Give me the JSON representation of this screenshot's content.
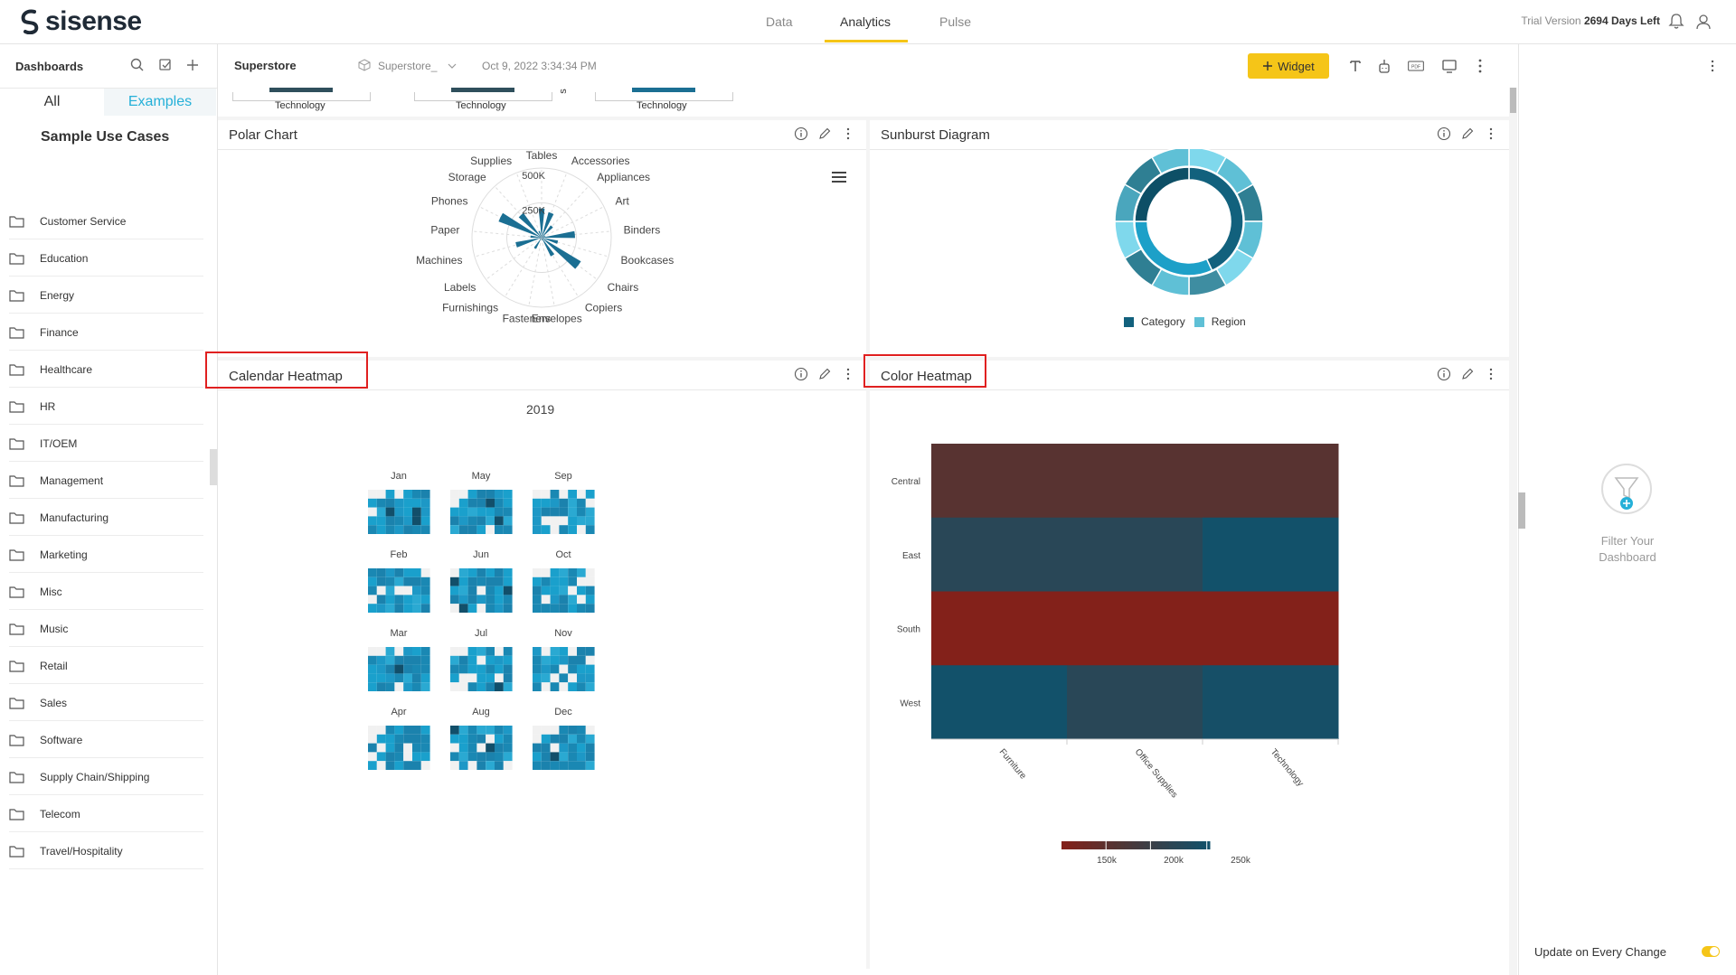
{
  "app": {
    "logo_text": "sisense",
    "nav_tabs": [
      "Data",
      "Analytics",
      "Pulse"
    ],
    "active_tab": "Analytics",
    "trial_label": "Trial Version",
    "trial_days": "2694 Days Left"
  },
  "sidebar": {
    "title": "Dashboards",
    "tabs": {
      "all": "All",
      "examples": "Examples"
    },
    "section_title": "Sample Use Cases",
    "folders": [
      "Customer Service",
      "Education",
      "Energy",
      "Finance",
      "Healthcare",
      "HR",
      "IT/OEM",
      "Management",
      "Manufacturing",
      "Marketing",
      "Misc",
      "Music",
      "Retail",
      "Sales",
      "Software",
      "Supply Chain/Shipping",
      "Telecom",
      "Travel/Hospitality"
    ]
  },
  "dashboard": {
    "name": "Superstore",
    "datasource": "Superstore_",
    "date": "Oct 9, 2022 3:34:34 PM",
    "widget_button": "Widget",
    "partial_labels": [
      "Technology",
      "Technology",
      "Technology"
    ],
    "partial_stub": "s"
  },
  "widgets": {
    "polar": {
      "title": "Polar Chart",
      "categories": [
        "Tables",
        "Accessories",
        "Appliances",
        "Art",
        "Binders",
        "Bookcases",
        "Chairs",
        "Copiers",
        "Envelopes",
        "Fasteners",
        "Furnishings",
        "Labels",
        "Machines",
        "Paper",
        "Phones",
        "Storage",
        "Supplies"
      ],
      "values": [
        210,
        190,
        110,
        30,
        240,
        120,
        330,
        150,
        20,
        5,
        90,
        15,
        190,
        80,
        330,
        220,
        50
      ],
      "ticks": [
        "250K",
        "500K"
      ],
      "ymax": 500,
      "color": "#1b6f93"
    },
    "sunburst": {
      "title": "Sunburst Diagram",
      "legend": [
        {
          "label": "Category",
          "color": "#12617d"
        },
        {
          "label": "Region",
          "color": "#5fc0d6"
        }
      ]
    },
    "calendar": {
      "title": "Calendar Heatmap",
      "year": "2019",
      "months": [
        "Jan",
        "May",
        "Sep",
        "Feb",
        "Jun",
        "Oct",
        "Mar",
        "Jul",
        "Nov",
        "Apr",
        "Aug",
        "Dec"
      ]
    },
    "color_heatmap": {
      "title": "Color Heatmap",
      "legend_ticks": [
        "150k",
        "200k",
        "250k"
      ],
      "colors": {
        "low": "#83211a",
        "mid": "#533533",
        "high": "#12516a"
      }
    }
  },
  "right_panel": {
    "filter_text": "Filter Your Dashboard",
    "update_text": "Update on Every Change"
  },
  "chart_data": [
    {
      "type": "heatmap",
      "title": "Color Heatmap",
      "x": [
        "Furniture",
        "Office Supplies",
        "Technology"
      ],
      "y": [
        "Central",
        "East",
        "South",
        "West"
      ],
      "values": [
        [
          165,
          165,
          165
        ],
        [
          225,
          225,
          255
        ],
        [
          120,
          120,
          120
        ],
        [
          255,
          225,
          250
        ]
      ],
      "colorbar_ticks": [
        "150k",
        "200k",
        "250k"
      ]
    }
  ]
}
